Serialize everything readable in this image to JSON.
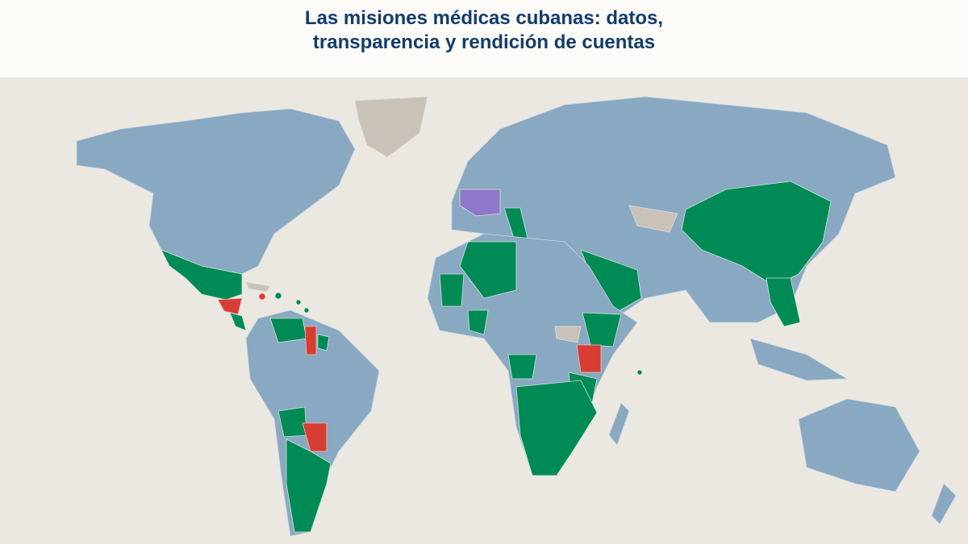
{
  "header": {
    "title": [
      "Las misiones médicas cubanas: datos,",
      "transparencia y rendición de cuentas"
    ]
  }
}
